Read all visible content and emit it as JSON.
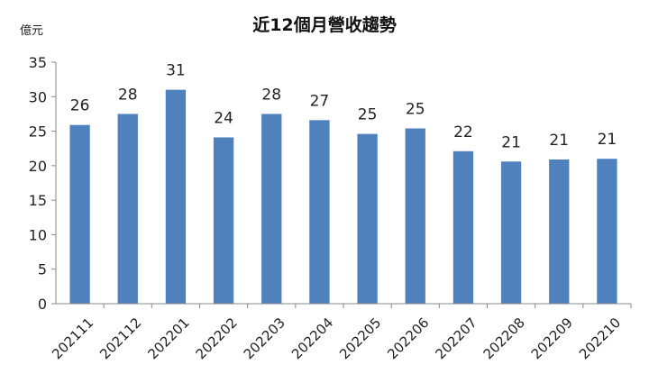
{
  "chart_data": {
    "type": "bar",
    "title": "近12個月營收趨勢",
    "ylabel": "億元",
    "xlabel": "",
    "categories": [
      "202111",
      "202112",
      "202201",
      "202202",
      "202203",
      "202204",
      "202205",
      "202206",
      "202207",
      "202208",
      "202209",
      "202210"
    ],
    "values": [
      25.9,
      27.5,
      31.0,
      24.1,
      27.5,
      26.6,
      24.6,
      25.4,
      22.1,
      20.6,
      20.9,
      21.0
    ],
    "data_labels": [
      "26",
      "28",
      "31",
      "24",
      "28",
      "27",
      "25",
      "25",
      "22",
      "21",
      "21",
      "21"
    ],
    "ylim": [
      0,
      35
    ],
    "yticks": [
      0,
      5,
      10,
      15,
      20,
      25,
      30,
      35
    ],
    "grid": false,
    "legend": "none",
    "bar_color": "#4F81BD"
  }
}
